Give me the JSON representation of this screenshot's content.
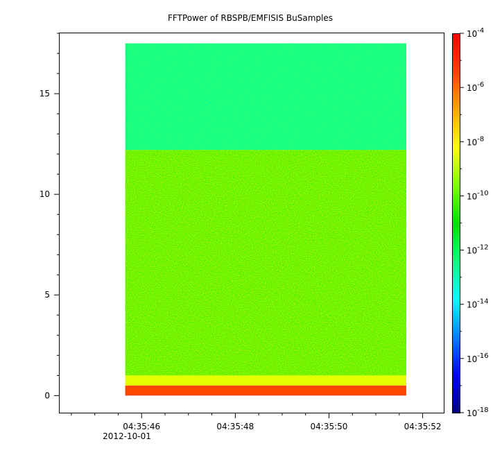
{
  "chart_data": {
    "type": "heatmap",
    "title": "FFTPower of RBSPB/EMFISIS  BuSamples",
    "xlabel": "",
    "ylabel": "",
    "x_date": "2012-10-01",
    "x_ticks": [
      "04:35:46",
      "04:35:48",
      "04:35:50",
      "04:35:52"
    ],
    "x_tick_seconds": [
      46,
      48,
      50,
      52
    ],
    "xlim_seconds": [
      44.25,
      52.45
    ],
    "data_x_range_seconds": [
      45.65,
      51.65
    ],
    "y_ticks": [
      0,
      5,
      10,
      15
    ],
    "ylim": [
      -0.85,
      18.0
    ],
    "data_y_range": [
      0,
      17.5
    ],
    "colorbar": {
      "scale": "log",
      "range": [
        1e-18,
        0.0001
      ],
      "tick_exponents": [
        -18,
        -16,
        -14,
        -12,
        -10,
        -8,
        -6,
        -4
      ],
      "tick_labels": [
        "10",
        "10",
        "10",
        "10",
        "10",
        "10",
        "10",
        "10"
      ],
      "tick_superscripts": [
        "-18",
        "-16",
        "-14",
        "-12",
        "-10",
        "-8",
        "-6",
        "-4"
      ],
      "colormap": [
        "#00007f",
        "#0000ff",
        "#007fff",
        "#00ffff",
        "#00ff7f",
        "#00e000",
        "#7fff00",
        "#ffff00",
        "#ffa500",
        "#ff4000",
        "#ff0000"
      ]
    },
    "regions": [
      {
        "y_range": [
          12.2,
          17.5
        ],
        "log_power": -12.6
      },
      {
        "y_range": [
          1.0,
          12.2
        ],
        "log_power": -10.4
      },
      {
        "y_range": [
          0.5,
          1.0
        ],
        "log_power": -8.5
      },
      {
        "y_range": [
          0.0,
          0.5
        ],
        "log_power": -5.5
      }
    ]
  }
}
